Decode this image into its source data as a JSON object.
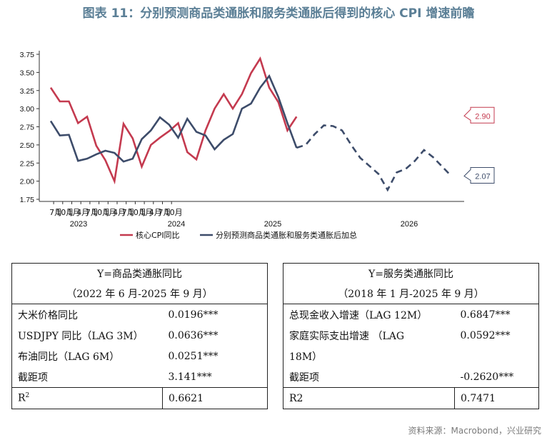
{
  "title": "图表 11：分别预测商品类通胀和服务类通胀后得到的核心 CPI 增速前瞻",
  "source": "资料来源：Macrobond，兴业研究",
  "chart_data": {
    "type": "line",
    "y_ticks": [
      "3.75",
      "3.50",
      "3.25",
      "3.00",
      "2.75",
      "2.50",
      "2.25",
      "2.00",
      "1.75"
    ],
    "ylim": [
      1.75,
      3.75
    ],
    "x_tick_labels": [
      "7月",
      "10月",
      "1月",
      "4月",
      "7月",
      "10月",
      "1月",
      "4月",
      "7月",
      "10月",
      "1月",
      "4月",
      "7月",
      "10月"
    ],
    "x_year_labels": [
      "2023",
      "2024",
      "2025",
      "2026"
    ],
    "legend": [
      "核心CPI同比",
      "分别预测商品类通胀和服务类通胀后加总"
    ],
    "colors": {
      "core": "#c43a4f",
      "forecast": "#3d4c6a"
    },
    "series": [
      {
        "name": "核心CPI同比",
        "start": "2022-06",
        "values": [
          3.29,
          3.1,
          3.1,
          2.8,
          2.89,
          2.49,
          2.29,
          2.0,
          2.79,
          2.59,
          2.2,
          2.5,
          2.6,
          2.69,
          2.8,
          2.4,
          2.3,
          2.7,
          3.0,
          3.2,
          3.0,
          3.2,
          3.49,
          3.69,
          3.29,
          3.09,
          2.7,
          2.89
        ]
      },
      {
        "name": "分别预测商品类通胀和服务类通胀后加总",
        "start": "2022-06",
        "values": [
          2.83,
          2.63,
          2.64,
          2.28,
          2.31,
          2.37,
          2.42,
          2.39,
          2.27,
          2.31,
          2.58,
          2.7,
          2.88,
          2.78,
          2.6,
          2.86,
          2.68,
          2.63,
          2.44,
          2.57,
          2.65,
          3.0,
          3.07,
          3.29,
          3.45,
          3.16,
          2.8,
          2.46,
          2.5,
          2.65,
          2.77,
          2.76,
          2.7,
          2.5,
          2.32,
          2.21,
          2.1,
          1.88,
          2.12,
          2.17,
          2.28,
          2.43,
          2.33,
          2.2,
          2.07
        ],
        "forecast_from": "2025-09"
      }
    ],
    "end_labels": {
      "core": "2.90",
      "forecast": "2.07"
    }
  },
  "table1": {
    "header1": "Y=商品类通胀同比",
    "header2": "（2022 年 6 月-2025 年 9 月）",
    "rows": [
      {
        "label": "大米价格同比",
        "value": "0.0196***"
      },
      {
        "label": "USDJPY 同比（LAG 3M）",
        "value": "0.0636***"
      },
      {
        "label": "布油同比（LAG 6M）",
        "value": "0.0251***"
      },
      {
        "label": "截距项",
        "value": "3.141***"
      }
    ],
    "r2_label": "R",
    "r2_sup": "2",
    "r2_value": "0.6621"
  },
  "table2": {
    "header1": "Y=服务类通胀同比",
    "header2": "（2018 年 1 月-2025 年 9 月）",
    "rows": [
      {
        "label": "总现金收入增速（LAG 12M）",
        "value": "0.6847***"
      },
      {
        "label": "家庭实际支出增速 （LAG",
        "value": "0.0592***"
      },
      {
        "label": "18M）",
        "value": ""
      },
      {
        "label": "截距项",
        "value": "-0.2620***"
      }
    ],
    "r2_label": "R2",
    "r2_value": "0.7471"
  }
}
